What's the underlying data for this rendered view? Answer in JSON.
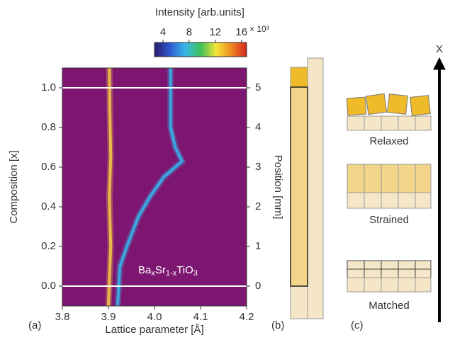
{
  "chart_data": {
    "type": "line",
    "background": "#7d1670",
    "xlabel": "Lattice parameter [Å]",
    "ylabel": "Composition [x]",
    "y2label": "Position [mm]",
    "xlim": [
      3.8,
      4.2
    ],
    "xticks": [
      3.8,
      3.9,
      {
        "value": 4,
        "label": "4.0"
      },
      4.1,
      4.2
    ],
    "ylim": [
      -0.1,
      1.1
    ],
    "yticks": [
      {
        "value": 0,
        "label": "0.0"
      },
      0.2,
      0.4,
      0.6,
      0.8,
      {
        "value": 1,
        "label": "1.0"
      }
    ],
    "y2lim": [
      -0.5,
      5.5
    ],
    "y2ticks": [
      0,
      1,
      2,
      3,
      4,
      5
    ],
    "hlines": [
      0,
      1
    ],
    "series": [
      {
        "color": "#e8b94a",
        "x": [
          3.9,
          3.905,
          3.902,
          3.905,
          3.903,
          3.902
        ],
        "y": [
          -0.1,
          0.2,
          0.45,
          0.65,
          0.9,
          1.1
        ]
      },
      {
        "color": "#3aa7e0",
        "x": [
          3.92,
          3.925,
          3.94,
          3.965,
          3.99,
          4.02,
          4.06,
          4.045,
          4.035,
          4.035
        ],
        "y": [
          -0.1,
          0.1,
          0.2,
          0.35,
          0.45,
          0.55,
          0.63,
          0.7,
          0.8,
          1.1
        ]
      }
    ],
    "annotation": [
      "Ba",
      "x",
      "Sr",
      "1-x",
      "TiO",
      "3"
    ],
    "colorbar": {
      "label": "Intensity [arb.units]",
      "clim": [
        2.7,
        16.8
      ],
      "ticks": [
        4,
        8,
        12,
        16
      ],
      "multiplier": "× 10³",
      "colormap": [
        "#2a1a6e",
        "#2d5bd0",
        "#38b7e8",
        "#3fbf5a",
        "#f2e636",
        "#f08a22",
        "#d0251d"
      ]
    }
  },
  "panels": {
    "a": "(a)",
    "b": "(b)",
    "c": "(c)"
  },
  "stack_labels": {
    "relaxed": "Relaxed",
    "strained": "Strained",
    "matched": "Matched",
    "axis": "X"
  }
}
